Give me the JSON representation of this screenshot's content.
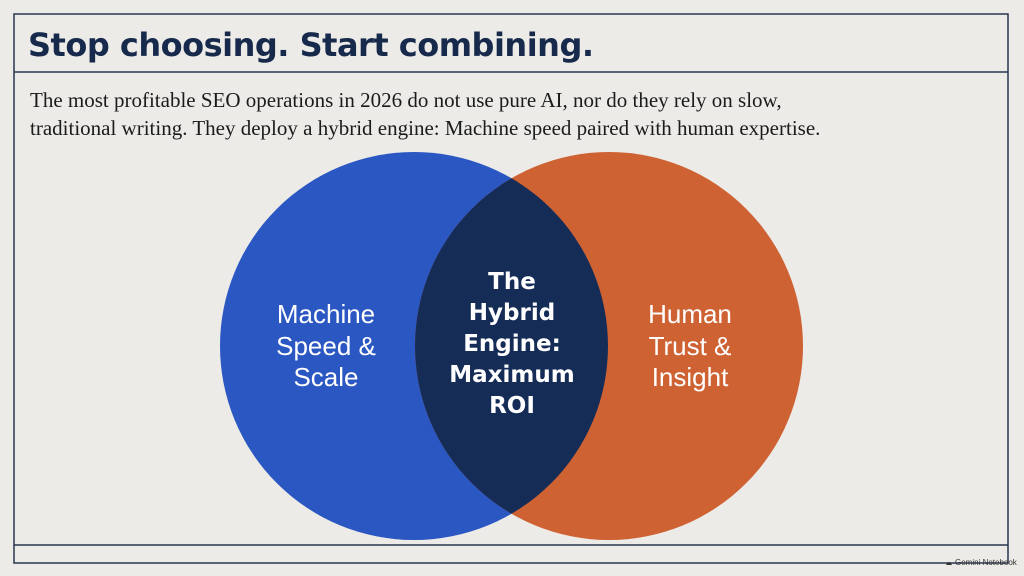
{
  "header": {
    "title": "Stop choosing. Start combining."
  },
  "intro": {
    "lines": [
      "The most profitable SEO operations in 2026 do not use pure AI, nor do they rely on slow,",
      "traditional writing. They deploy a hybrid engine: Machine speed paired with human expertise."
    ]
  },
  "venn": {
    "left": {
      "lines": [
        "Machine",
        "Speed &",
        "Scale"
      ]
    },
    "center": {
      "lines": [
        "The",
        "Hybrid",
        "Engine:",
        "Maximum",
        "ROI"
      ]
    },
    "right": {
      "lines": [
        "Human",
        "Trust &",
        "Insight"
      ]
    }
  },
  "watermark": "Gemini Notebook"
}
